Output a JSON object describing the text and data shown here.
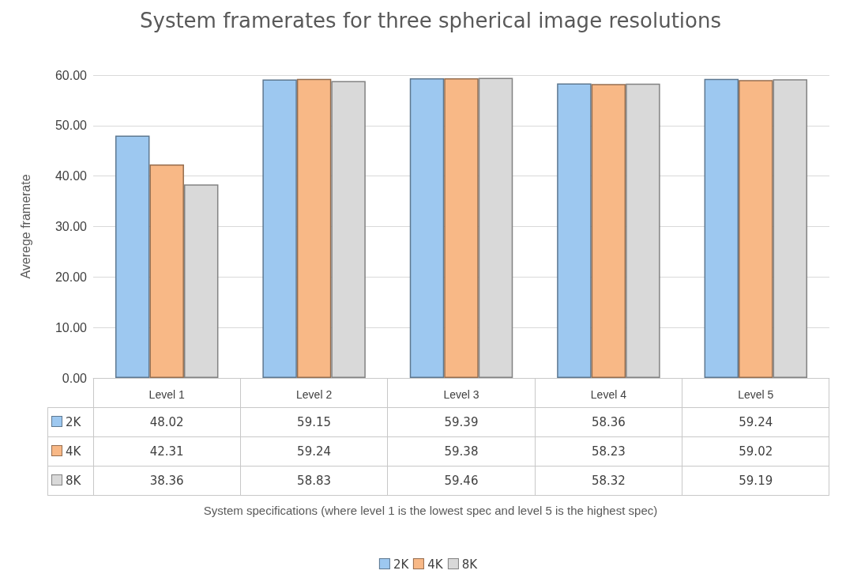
{
  "chart_data": {
    "type": "bar",
    "title": "System framerates for three spherical image resolutions",
    "annotations": [
      "System specifications (where level 1 is the lowest spec and level 5 is the highest spec)"
    ],
    "ylabel": "Averege framerate",
    "categories": [
      "Level 1",
      "Level 2",
      "Level 3",
      "Level 4",
      "Level 5"
    ],
    "series": [
      {
        "name": "2K",
        "color": "#9dc8f0",
        "values": [
          48.02,
          59.15,
          59.39,
          58.36,
          59.24
        ]
      },
      {
        "name": "4K",
        "color": "#f8b886",
        "values": [
          42.31,
          59.24,
          59.38,
          58.23,
          59.02
        ]
      },
      {
        "name": "8K",
        "color": "#d9d9d9",
        "values": [
          38.36,
          58.83,
          59.46,
          58.32,
          59.19
        ]
      }
    ],
    "ylim": [
      0,
      60
    ],
    "yticks": [
      {
        "value": 0,
        "label": "0.00"
      },
      {
        "value": 10,
        "label": "10.00"
      },
      {
        "value": 20,
        "label": "20.00"
      },
      {
        "value": 30,
        "label": "30.00"
      },
      {
        "value": 40,
        "label": "40.00"
      },
      {
        "value": 50,
        "label": "50.00"
      },
      {
        "value": 60,
        "label": "60.00"
      }
    ],
    "grid": "y",
    "legend": "bottom",
    "data_labels": true
  }
}
